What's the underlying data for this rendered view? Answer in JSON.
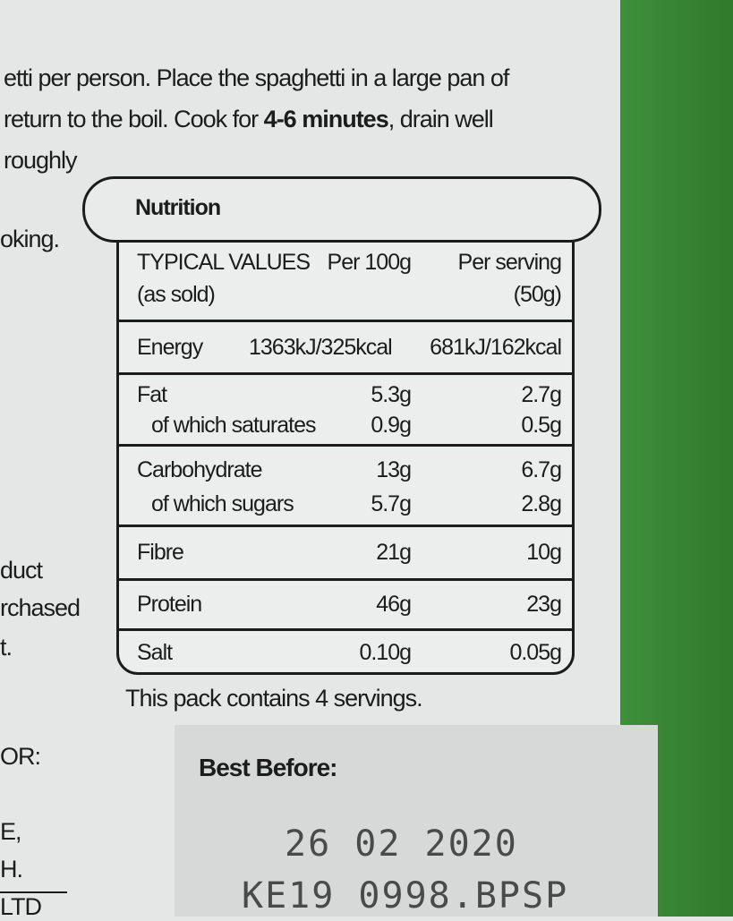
{
  "instructions": [
    "etti per person. Place the spaghetti in a large pan of",
    [
      "return to the boil. Cook for ",
      "4-6 minutes",
      ", drain well"
    ],
    "roughly"
  ],
  "fragments": [
    "oking.",
    "duct",
    "rchased",
    "t.",
    "OR:",
    "E,",
    "H.",
    "LTD"
  ],
  "nutrition": {
    "title": "Nutrition",
    "header": [
      "TYPICAL VALUES",
      "(as sold)",
      "Per 100g",
      "Per serving",
      "(50g)"
    ],
    "rows": [
      [
        "Energy",
        "1363kJ/325kcal",
        "681kJ/162kcal"
      ],
      [
        "Fat",
        "5.3g",
        "2.7g"
      ],
      [
        "of which saturates",
        "0.9g",
        "0.5g"
      ],
      [
        "Carbohydrate",
        "13g",
        "6.7g"
      ],
      [
        "of which sugars",
        "5.7g",
        "2.8g"
      ],
      [
        "Fibre",
        "21g",
        "10g"
      ],
      [
        "Protein",
        "46g",
        "23g"
      ],
      [
        "Salt",
        "0.10g",
        "0.05g"
      ]
    ],
    "note": "This pack contains 4 servings."
  },
  "best_before": {
    "label": "Best Before:",
    "date": "26 02 2020",
    "code": "KE19 0998.BPSP"
  }
}
